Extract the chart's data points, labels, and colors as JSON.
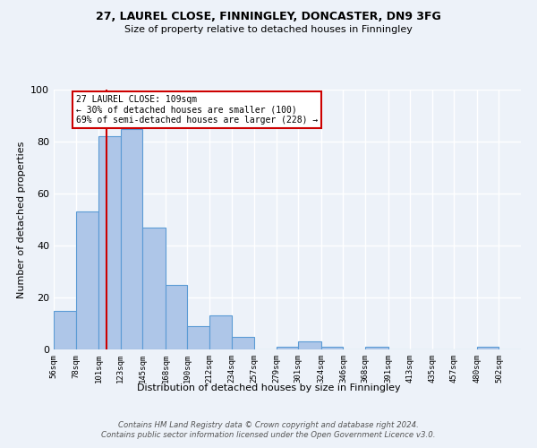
{
  "title1": "27, LAUREL CLOSE, FINNINGLEY, DONCASTER, DN9 3FG",
  "title2": "Size of property relative to detached houses in Finningley",
  "xlabel": "Distribution of detached houses by size in Finningley",
  "ylabel": "Number of detached properties",
  "bin_labels": [
    "56sqm",
    "78sqm",
    "101sqm",
    "123sqm",
    "145sqm",
    "168sqm",
    "190sqm",
    "212sqm",
    "234sqm",
    "257sqm",
    "279sqm",
    "301sqm",
    "324sqm",
    "346sqm",
    "368sqm",
    "391sqm",
    "413sqm",
    "435sqm",
    "457sqm",
    "480sqm",
    "502sqm"
  ],
  "bar_heights": [
    15,
    53,
    82,
    85,
    47,
    25,
    9,
    13,
    5,
    0,
    1,
    3,
    1,
    0,
    1,
    0,
    0,
    0,
    0,
    1,
    0
  ],
  "bar_color": "#aec6e8",
  "bar_edge_color": "#5b9bd5",
  "property_line_x": 109,
  "bin_edges": [
    56,
    78,
    101,
    123,
    145,
    168,
    190,
    212,
    234,
    257,
    279,
    301,
    324,
    346,
    368,
    391,
    413,
    435,
    457,
    480,
    502,
    524
  ],
  "annotation_text": "27 LAUREL CLOSE: 109sqm\n← 30% of detached houses are smaller (100)\n69% of semi-detached houses are larger (228) →",
  "annotation_box_color": "#ffffff",
  "annotation_box_edge": "#cc0000",
  "red_line_color": "#cc0000",
  "ylim": [
    0,
    100
  ],
  "yticks": [
    0,
    20,
    40,
    60,
    80,
    100
  ],
  "footer": "Contains HM Land Registry data © Crown copyright and database right 2024.\nContains public sector information licensed under the Open Government Licence v3.0.",
  "bg_color": "#edf2f9",
  "plot_bg_color": "#edf2f9"
}
